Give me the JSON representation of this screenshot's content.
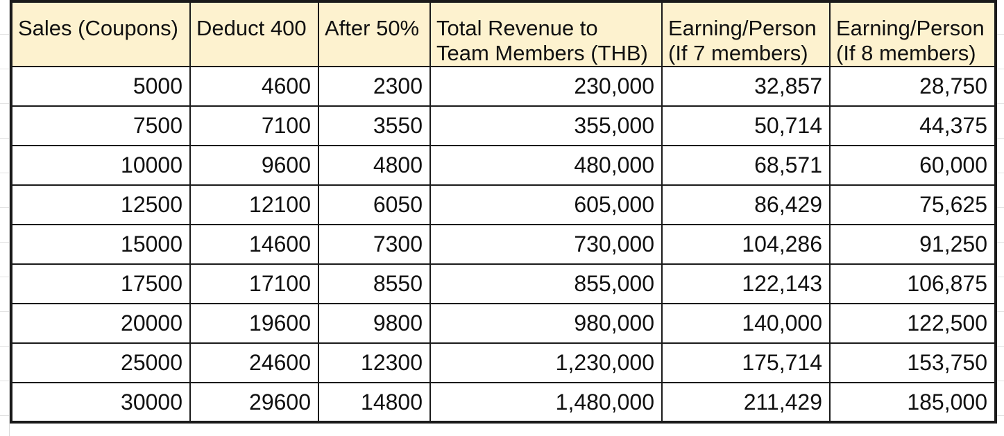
{
  "table": {
    "headers": [
      "Sales (Coupons)",
      "Deduct 400",
      "After 50%",
      "Total Revenue to\nTeam Members (THB)",
      "Earning/Person\n(If 7 members)",
      "Earning/Person\n(If 8 members)"
    ],
    "rows": [
      [
        "5000",
        "4600",
        "2300",
        "230,000",
        "32,857",
        "28,750"
      ],
      [
        "7500",
        "7100",
        "3550",
        "355,000",
        "50,714",
        "44,375"
      ],
      [
        "10000",
        "9600",
        "4800",
        "480,000",
        "68,571",
        "60,000"
      ],
      [
        "12500",
        "12100",
        "6050",
        "605,000",
        "86,429",
        "75,625"
      ],
      [
        "15000",
        "14600",
        "7300",
        "730,000",
        "104,286",
        "91,250"
      ],
      [
        "17500",
        "17100",
        "8550",
        "855,000",
        "122,143",
        "106,875"
      ],
      [
        "20000",
        "19600",
        "9800",
        "980,000",
        "140,000",
        "122,500"
      ],
      [
        "25000",
        "24600",
        "12300",
        "1,230,000",
        "175,714",
        "153,750"
      ],
      [
        "30000",
        "29600",
        "14800",
        "1,480,000",
        "211,429",
        "185,000"
      ]
    ]
  },
  "colors": {
    "header_fill": "#fdf2cf",
    "border": "#1a1a1a",
    "gridline": "#dadada"
  }
}
